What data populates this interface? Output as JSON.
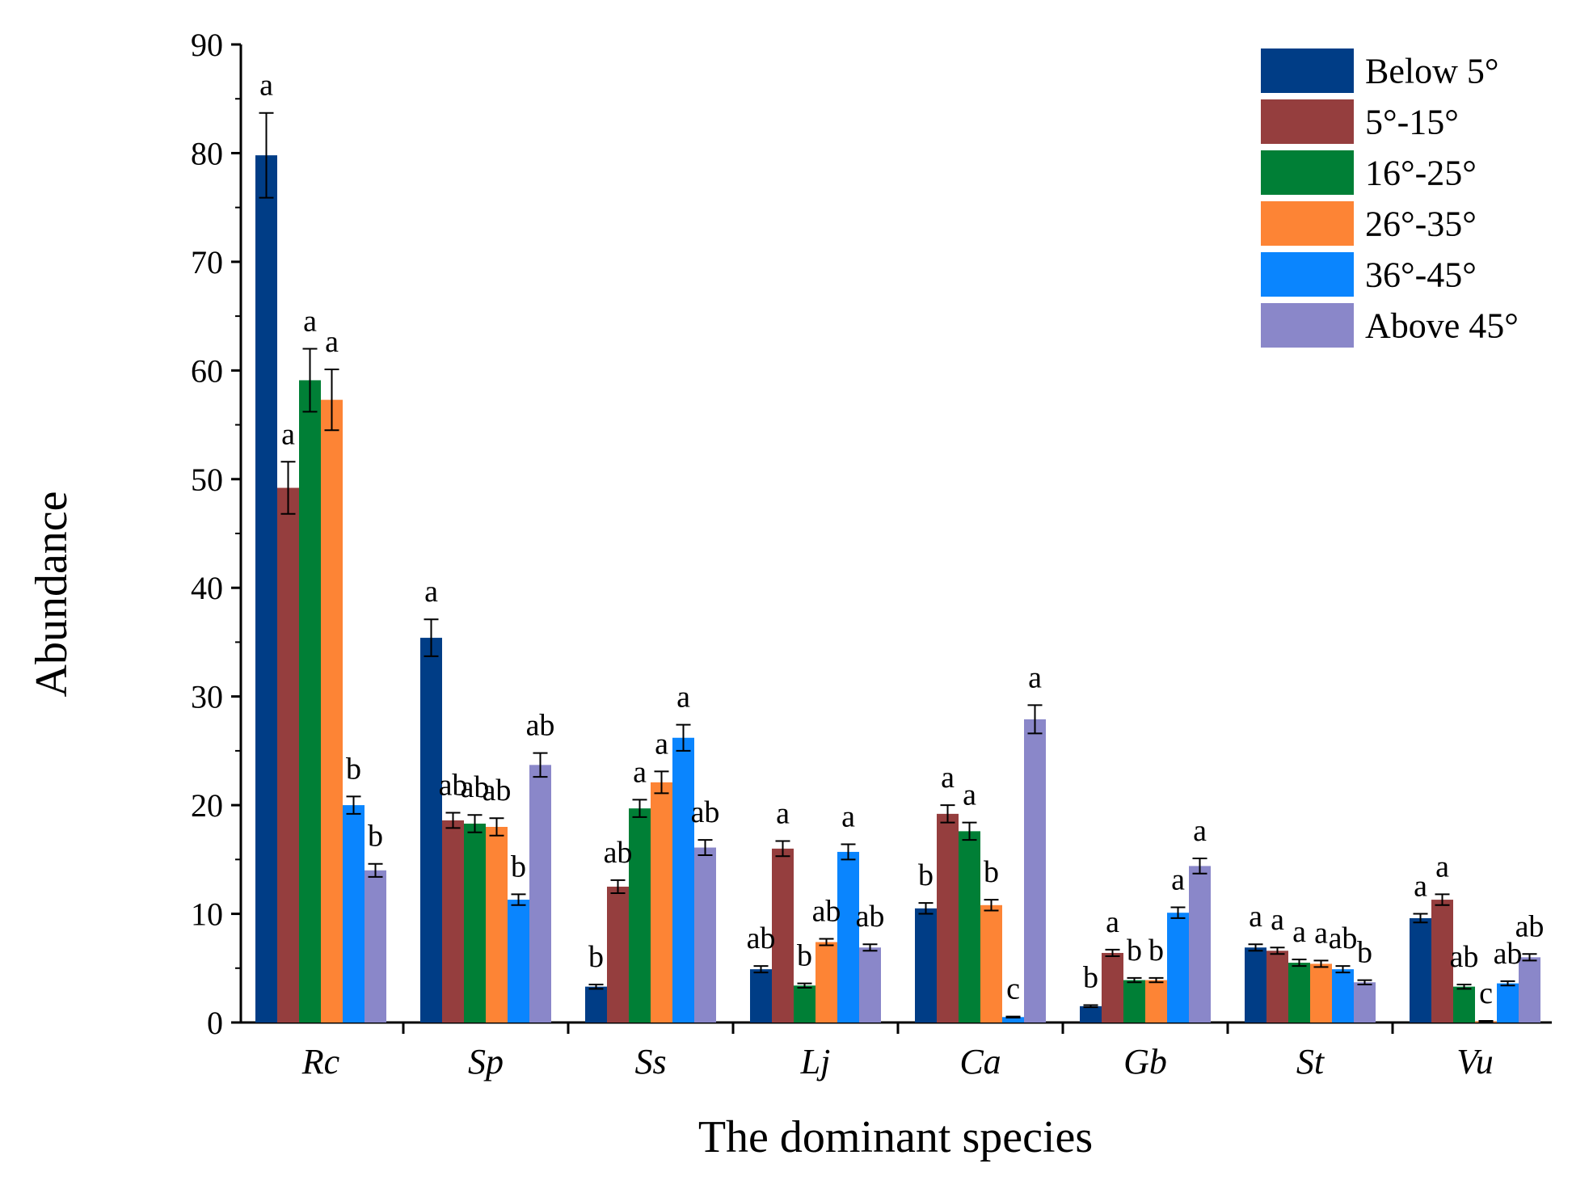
{
  "chart_data": {
    "type": "bar",
    "title": "",
    "xlabel": "The dominant species",
    "ylabel": "Abundance",
    "ylim": [
      0,
      90
    ],
    "yticks": [
      0,
      10,
      20,
      30,
      40,
      50,
      60,
      70,
      80,
      90
    ],
    "grid": false,
    "legend_position": "top-right",
    "categories": [
      "Rc",
      "Sp",
      "Ss",
      "Lj",
      "Ca",
      "Gb",
      "St",
      "Vu"
    ],
    "series": [
      {
        "name": "Below 5°",
        "color": "#003d86",
        "values": [
          79.8,
          35.4,
          3.3,
          4.9,
          10.5,
          1.5,
          6.9,
          9.6
        ],
        "errors": [
          3.9,
          1.7,
          0.2,
          0.3,
          0.5,
          0.1,
          0.3,
          0.4
        ],
        "labels": [
          "a",
          "a",
          "b",
          "ab",
          "b",
          "b",
          "a",
          "a"
        ]
      },
      {
        "name": "5°-15°",
        "color": "#953e3e",
        "values": [
          49.2,
          18.6,
          12.5,
          16.0,
          19.2,
          6.4,
          6.6,
          11.3
        ],
        "errors": [
          2.4,
          0.7,
          0.6,
          0.7,
          0.8,
          0.3,
          0.3,
          0.5
        ],
        "labels": [
          "a",
          "ab",
          "ab",
          "a",
          "a",
          "a",
          "a",
          "a"
        ]
      },
      {
        "name": "16°-25°",
        "color": "#007f36",
        "values": [
          59.1,
          18.3,
          19.7,
          3.4,
          17.6,
          3.9,
          5.5,
          3.3
        ],
        "errors": [
          2.9,
          0.8,
          0.8,
          0.2,
          0.8,
          0.2,
          0.3,
          0.2
        ],
        "labels": [
          "a",
          "ab",
          "a",
          "b",
          "a",
          "b",
          "a",
          "ab"
        ]
      },
      {
        "name": "26°-35°",
        "color": "#fd8435",
        "values": [
          57.3,
          18.0,
          22.1,
          7.4,
          10.8,
          3.9,
          5.4,
          0.1
        ],
        "errors": [
          2.8,
          0.8,
          1.0,
          0.3,
          0.5,
          0.2,
          0.3,
          0.05
        ],
        "labels": [
          "a",
          "ab",
          "a",
          "ab",
          "b",
          "b",
          "a",
          "c"
        ]
      },
      {
        "name": "36°-45°",
        "color": "#0a85fe",
        "values": [
          20.0,
          11.3,
          26.2,
          15.7,
          0.5,
          10.1,
          4.9,
          3.6
        ],
        "errors": [
          0.8,
          0.5,
          1.2,
          0.7,
          0.05,
          0.5,
          0.3,
          0.2
        ],
        "labels": [
          "b",
          "b",
          "a",
          "a",
          "c",
          "a",
          "ab",
          "ab"
        ]
      },
      {
        "name": "Above 45°",
        "color": "#8a87c9",
        "values": [
          14.0,
          23.7,
          16.1,
          6.9,
          27.9,
          14.4,
          3.7,
          6.0
        ],
        "errors": [
          0.6,
          1.1,
          0.7,
          0.3,
          1.3,
          0.7,
          0.2,
          0.3
        ],
        "labels": [
          "b",
          "ab",
          "ab",
          "ab",
          "a",
          "a",
          "b",
          "ab"
        ]
      }
    ]
  }
}
